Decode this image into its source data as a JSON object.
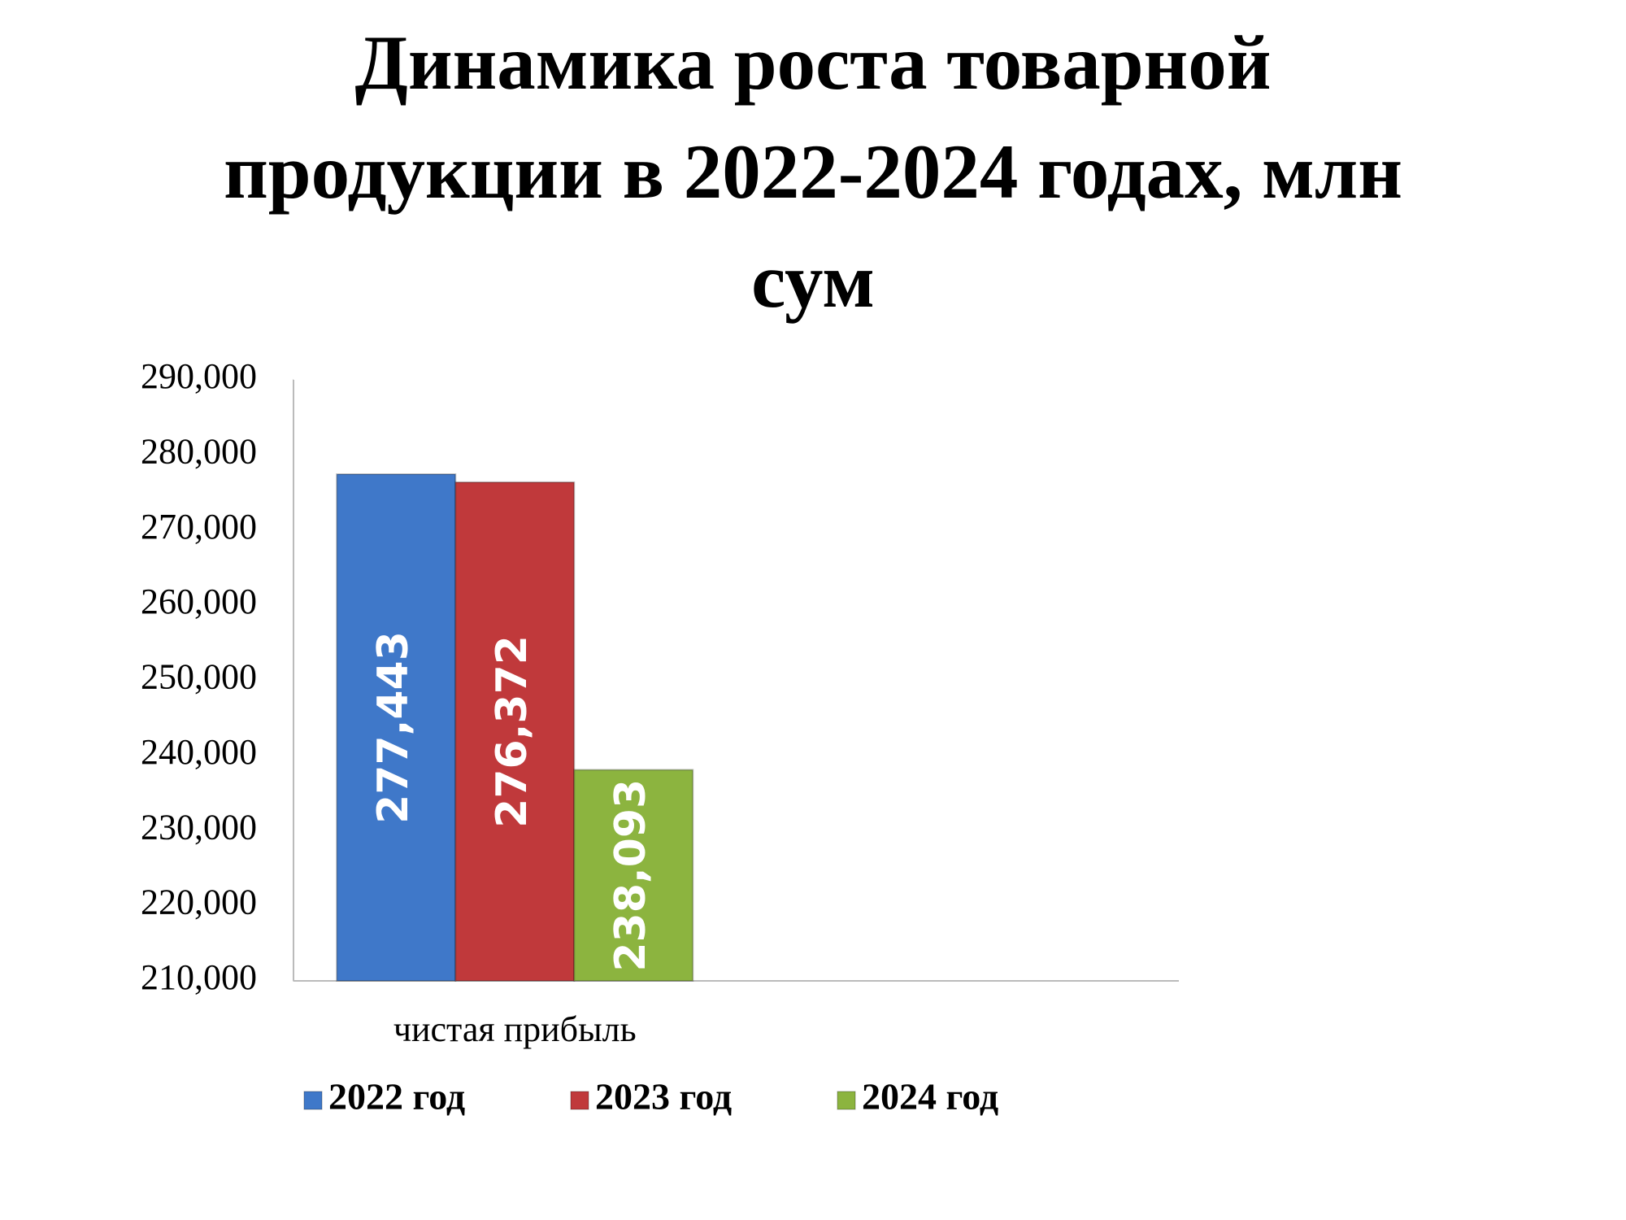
{
  "chart_data": {
    "type": "bar",
    "title": "Динамика роста товарной продукции в 2022-2024 годах, млн сум",
    "categories": [
      "чистая прибыль",
      null
    ],
    "series": [
      {
        "name": "2022 год",
        "color": "#3f78c9",
        "values": [
          277443,
          null
        ],
        "value_labels": [
          "277,443",
          null
        ]
      },
      {
        "name": "2023 год",
        "color": "#c0393b",
        "values": [
          276372,
          null
        ],
        "value_labels": [
          "276,372",
          null
        ]
      },
      {
        "name": "2024 год",
        "color": "#8cb43f",
        "values": [
          238093,
          null
        ],
        "value_labels": [
          "238,093",
          null
        ]
      }
    ],
    "ylim": [
      210000,
      290000
    ],
    "yticks": [
      {
        "value": 210000,
        "label": "210,000"
      },
      {
        "value": 220000,
        "label": "220,000"
      },
      {
        "value": 230000,
        "label": "230,000"
      },
      {
        "value": 240000,
        "label": "240,000"
      },
      {
        "value": 250000,
        "label": "250,000"
      },
      {
        "value": 260000,
        "label": "260,000"
      },
      {
        "value": 270000,
        "label": "270,000"
      },
      {
        "value": 280000,
        "label": "280,000"
      },
      {
        "value": 290000,
        "label": "290,000"
      }
    ],
    "legend": "bottom"
  }
}
